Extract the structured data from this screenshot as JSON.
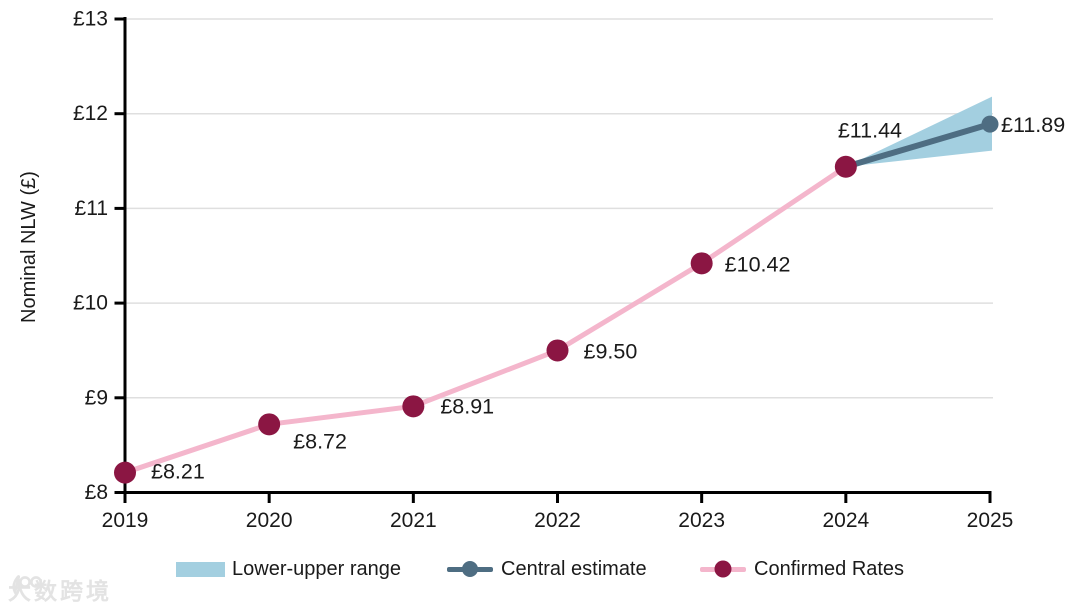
{
  "chart_data": {
    "type": "line",
    "title": "",
    "xlabel": "",
    "ylabel": "Nominal NLW (£)",
    "ylim": [
      8,
      13
    ],
    "xlim": [
      2019,
      2025
    ],
    "grid": "horizontal",
    "legend_position": "bottom",
    "y_tick_values": [
      8,
      9,
      10,
      11,
      12,
      13
    ],
    "y_tick_labels": [
      "£8",
      "£9",
      "£10",
      "£11",
      "£12",
      "£13"
    ],
    "x_tick_values": [
      2019,
      2020,
      2021,
      2022,
      2023,
      2024,
      2025
    ],
    "x_tick_labels": [
      "2019",
      "2020",
      "2021",
      "2022",
      "2023",
      "2024",
      "2025"
    ],
    "series": [
      {
        "name": "Confirmed Rates",
        "type": "line",
        "x": [
          2019,
          2020,
          2021,
          2022,
          2023,
          2024
        ],
        "values": [
          8.21,
          8.72,
          8.91,
          9.5,
          10.42,
          11.44
        ],
        "labels": [
          "£8.21",
          "£8.72",
          "£8.91",
          "£9.50",
          "£10.42",
          "£11.44"
        ]
      },
      {
        "name": "Central estimate",
        "type": "line",
        "x": [
          2024,
          2025
        ],
        "values": [
          11.44,
          11.89
        ],
        "labels": [
          "",
          "£11.89"
        ]
      },
      {
        "name": "Lower-upper range",
        "type": "band",
        "x": [
          2024,
          2025
        ],
        "lower": [
          11.44,
          11.61
        ],
        "upper": [
          11.44,
          12.18
        ]
      }
    ]
  },
  "legend": {
    "items": [
      {
        "label": "Lower-upper range",
        "glyph": "band"
      },
      {
        "label": "Central estimate",
        "glyph": "line-dot"
      },
      {
        "label": "Confirmed Rates",
        "glyph": "line-dot"
      }
    ]
  },
  "colors": {
    "range_band": "#a3cfe0",
    "central_estimate": "#4e6d82",
    "confirmed_line": "#f4b6cc",
    "confirmed_marker": "#8b1643",
    "gridline": "#dfdfdf",
    "axis": "#000000",
    "text": "#1a1a1a",
    "watermark": "#e3e3e3"
  },
  "watermark": {
    "text": "大数跨境"
  }
}
